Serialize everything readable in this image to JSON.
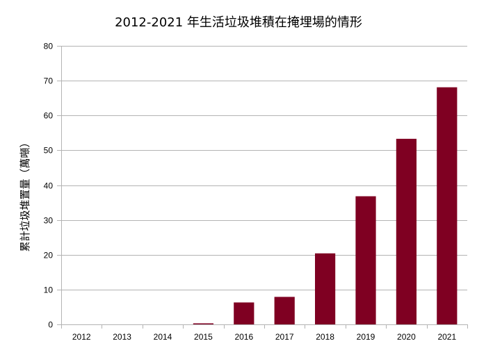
{
  "chart_data": {
    "type": "bar",
    "title": "2012-2021 年生活垃圾堆積在掩埋場的情形",
    "xlabel": "",
    "ylabel": "累計垃圾堆置量（萬噸）",
    "categories": [
      "2012",
      "2013",
      "2014",
      "2015",
      "2016",
      "2017",
      "2018",
      "2019",
      "2020",
      "2021"
    ],
    "values": [
      0,
      0,
      0,
      0.3,
      6.3,
      7.9,
      20.4,
      36.8,
      53.3,
      68.1
    ],
    "ylim": [
      0,
      80
    ],
    "yticks": [
      0,
      10,
      20,
      30,
      40,
      50,
      60,
      70,
      80
    ],
    "grid": true,
    "legend": "none",
    "colors": {
      "bar": "#7f0022",
      "grid": "#b3b3b3",
      "axis": "#b3b3b3"
    }
  }
}
